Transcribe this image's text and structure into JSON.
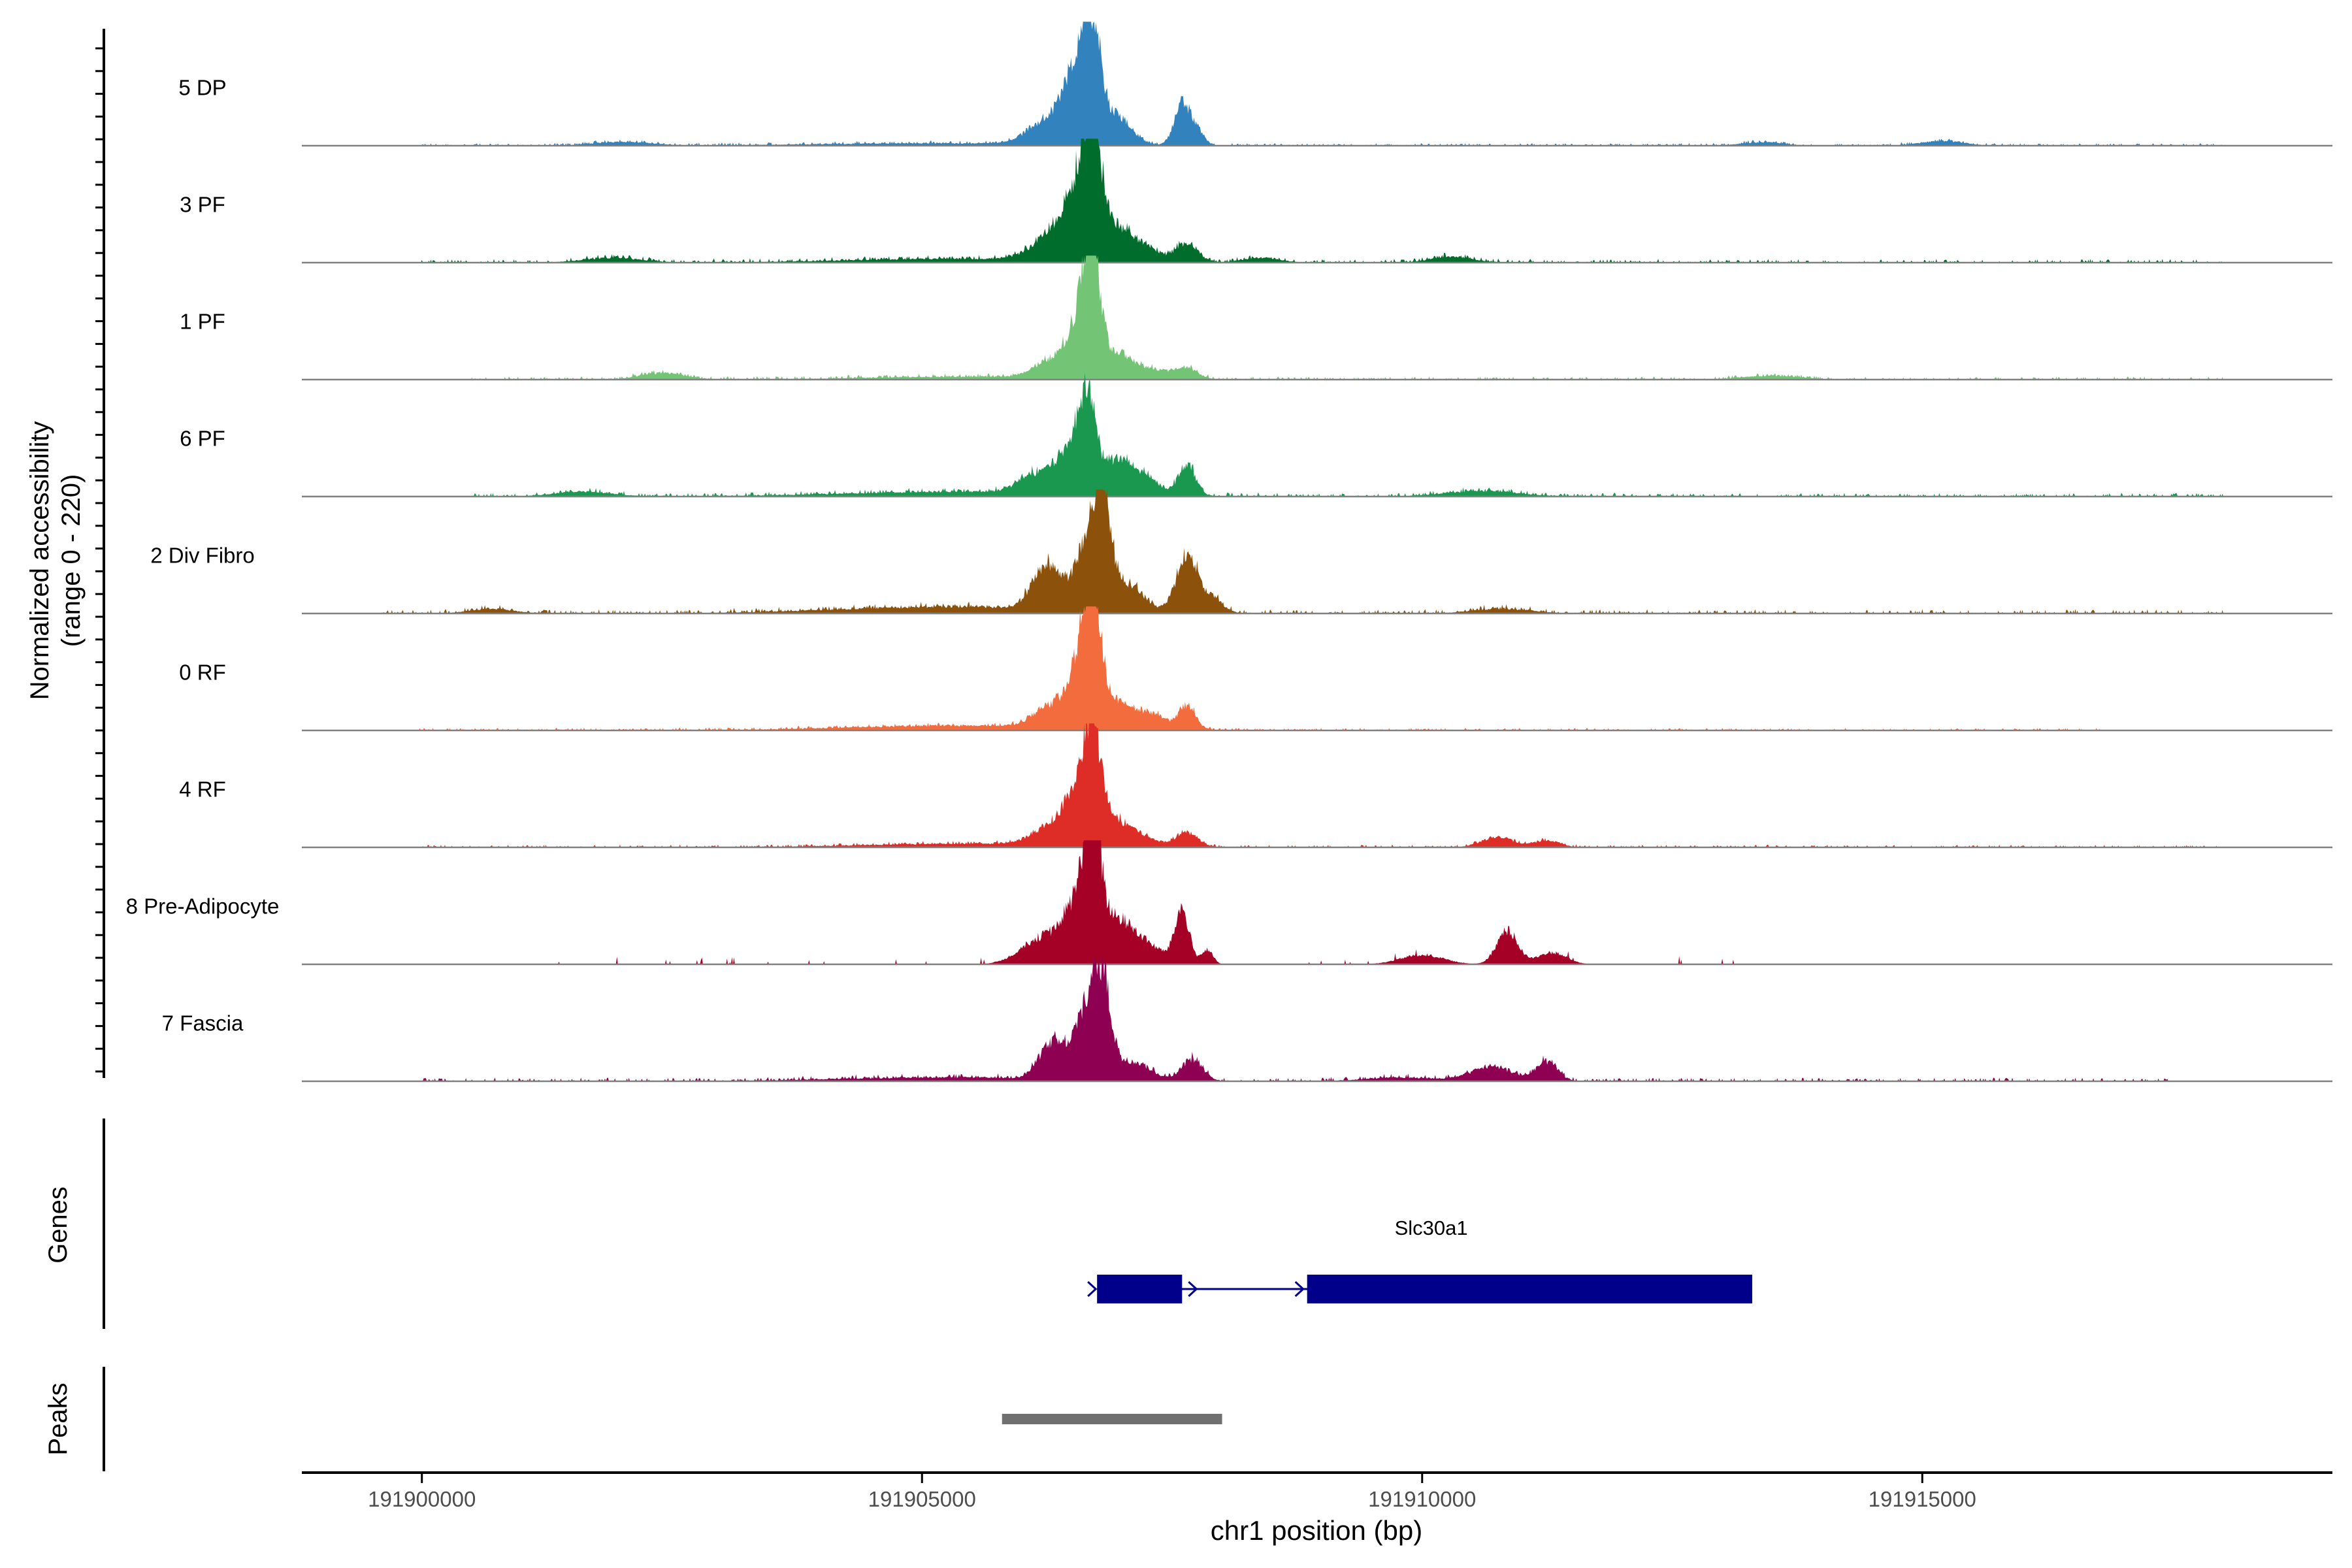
{
  "chart_data": {
    "type": "area",
    "title": "",
    "ylabel": "Normalized accessibility",
    "ylabel_range": "(range 0 - 220)",
    "y_range": [
      0,
      220
    ],
    "xlabel": "chr1 position (bp)",
    "x_range": [
      191898800,
      191919100
    ],
    "x_ticks": [
      191900000,
      191905000,
      191910000,
      191915000
    ],
    "x_tick_labels": [
      "191900000",
      "191905000",
      "191910000",
      "191915000"
    ],
    "tracks": [
      {
        "name": "5 DP",
        "color": "#3182bd",
        "noise": {
          "start": 191900000,
          "end": 191918000,
          "level": 5
        },
        "peaks": [
          [
            191905200,
            1800,
            5
          ],
          [
            191906300,
            300,
            55
          ],
          [
            191906550,
            180,
            125
          ],
          [
            191906700,
            120,
            210
          ],
          [
            191906950,
            200,
            60
          ],
          [
            191907600,
            110,
            85
          ],
          [
            191907750,
            100,
            30
          ],
          [
            191902000,
            400,
            8
          ],
          [
            191915200,
            300,
            10
          ],
          [
            191913400,
            300,
            7
          ]
        ]
      },
      {
        "name": "3 PF",
        "color": "#006d2c",
        "noise": {
          "start": 191900000,
          "end": 191918000,
          "level": 7
        },
        "peaks": [
          [
            191905400,
            1600,
            8
          ],
          [
            191906350,
            300,
            60
          ],
          [
            191906600,
            200,
            130
          ],
          [
            191906700,
            120,
            200
          ],
          [
            191906950,
            220,
            65
          ],
          [
            191907250,
            200,
            25
          ],
          [
            191907650,
            150,
            40
          ],
          [
            191908400,
            250,
            10
          ],
          [
            191910300,
            300,
            12
          ],
          [
            191901900,
            400,
            10
          ]
        ]
      },
      {
        "name": "1 PF",
        "color": "#74c476",
        "noise": {
          "start": 191900500,
          "end": 191918000,
          "level": 6
        },
        "peaks": [
          [
            191905500,
            1500,
            6
          ],
          [
            191906300,
            250,
            35
          ],
          [
            191906600,
            180,
            125
          ],
          [
            191906700,
            110,
            210
          ],
          [
            191906950,
            200,
            50
          ],
          [
            191907300,
            250,
            20
          ],
          [
            191907650,
            150,
            22
          ],
          [
            191902400,
            300,
            14
          ],
          [
            191913500,
            400,
            8
          ]
        ]
      },
      {
        "name": "6 PF",
        "color": "#1a9850",
        "noise": {
          "start": 191900500,
          "end": 191918000,
          "level": 7
        },
        "peaks": [
          [
            191905400,
            1700,
            10
          ],
          [
            191906150,
            250,
            40
          ],
          [
            191906500,
            200,
            90
          ],
          [
            191906650,
            120,
            165
          ],
          [
            191906950,
            220,
            70
          ],
          [
            191907250,
            200,
            30
          ],
          [
            191907650,
            120,
            65
          ],
          [
            191910600,
            500,
            12
          ],
          [
            191901600,
            400,
            10
          ]
        ]
      },
      {
        "name": "2 Div Fibro",
        "color": "#8c510a",
        "noise": {
          "start": 191899600,
          "end": 191918000,
          "level": 8
        },
        "peaks": [
          [
            191905300,
            1600,
            14
          ],
          [
            191906250,
            200,
            90
          ],
          [
            191906650,
            180,
            130
          ],
          [
            191906800,
            120,
            200
          ],
          [
            191907050,
            220,
            60
          ],
          [
            191907650,
            150,
            120
          ],
          [
            191907900,
            150,
            30
          ],
          [
            191900700,
            300,
            10
          ],
          [
            191910800,
            400,
            10
          ]
        ]
      },
      {
        "name": "0 RF",
        "color": "#f26c3d",
        "noise": {
          "start": 191899800,
          "end": 191916800,
          "level": 5
        },
        "peaks": [
          [
            191905400,
            1600,
            10
          ],
          [
            191906300,
            250,
            45
          ],
          [
            191906600,
            180,
            120
          ],
          [
            191906700,
            120,
            210
          ],
          [
            191906950,
            220,
            55
          ],
          [
            191907300,
            200,
            30
          ],
          [
            191907650,
            120,
            50
          ]
        ]
      },
      {
        "name": "4 RF",
        "color": "#de2d26",
        "noise": {
          "start": 191900000,
          "end": 191918000,
          "level": 5
        },
        "peaks": [
          [
            191905500,
            1500,
            8
          ],
          [
            191906250,
            250,
            30
          ],
          [
            191906550,
            200,
            100
          ],
          [
            191906700,
            120,
            195
          ],
          [
            191906900,
            250,
            50
          ],
          [
            191907200,
            250,
            15
          ],
          [
            191907650,
            150,
            30
          ],
          [
            191910750,
            220,
            22
          ],
          [
            191911250,
            180,
            14
          ]
        ]
      },
      {
        "name": "8 Pre-Adipocyte",
        "color": "#a50026",
        "noise": {
          "start": 191901000,
          "end": 191914000,
          "level": 10,
          "sparse": true
        },
        "peaks": [
          [
            191906200,
            300,
            55
          ],
          [
            191906550,
            200,
            110
          ],
          [
            191906700,
            110,
            245
          ],
          [
            191906900,
            250,
            80
          ],
          [
            191907200,
            300,
            40
          ],
          [
            191907600,
            100,
            110
          ],
          [
            191907850,
            80,
            30
          ],
          [
            191910000,
            300,
            20
          ],
          [
            191910850,
            150,
            70
          ],
          [
            191911300,
            200,
            25
          ]
        ]
      },
      {
        "name": "7 Fascia",
        "color": "#8e0152",
        "noise": {
          "start": 191900000,
          "end": 191917500,
          "level": 7
        },
        "peaks": [
          [
            191905300,
            1600,
            8
          ],
          [
            191906300,
            180,
            75
          ],
          [
            191906650,
            180,
            140
          ],
          [
            191906800,
            120,
            165
          ],
          [
            191907100,
            250,
            40
          ],
          [
            191907700,
            150,
            45
          ],
          [
            191910700,
            300,
            30
          ],
          [
            191911250,
            150,
            40
          ],
          [
            191909800,
            500,
            8
          ]
        ]
      }
    ],
    "genes_label": "Genes",
    "genes": [
      {
        "name": "Slc30a1",
        "color": "#00008b",
        "line_start": 191906750,
        "line_end": 191913300,
        "exons": [
          [
            191906750,
            191907600
          ],
          [
            191908850,
            191913300
          ]
        ],
        "strand": "+"
      }
    ],
    "peaks_label": "Peaks",
    "peak_regions": [
      {
        "start": 191905800,
        "end": 191908000,
        "color": "#707070"
      }
    ]
  }
}
